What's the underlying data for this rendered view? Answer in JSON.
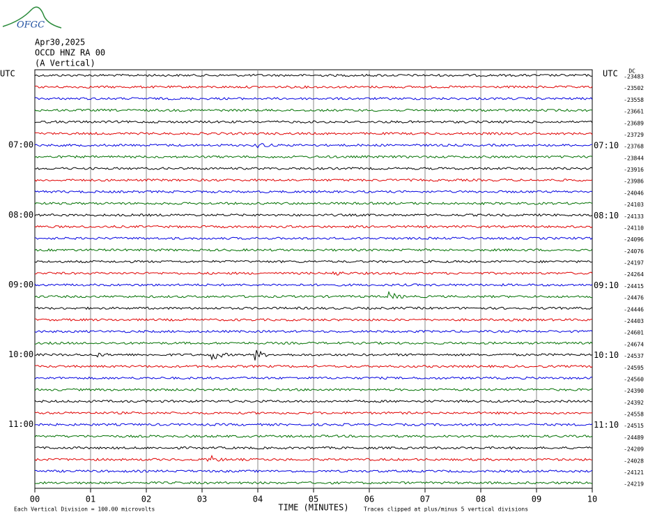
{
  "logo": "OFGC",
  "header": {
    "date": "Apr30,2025",
    "station": "OCCD HNZ RA 00",
    "component": "(A Vertical)"
  },
  "left_axis": {
    "title": "UTC",
    "hour_labels": [
      "07:00",
      "08:00",
      "09:00",
      "10:00",
      "11:00"
    ]
  },
  "right_axis": {
    "title": "UTC",
    "dc_title": "DC",
    "hour_labels": [
      "07:10",
      "08:10",
      "09:10",
      "10:10",
      "11:10"
    ],
    "dc_offsets": [
      "-23483",
      "-23502",
      "-23558",
      "-23661",
      "-23689",
      "-23729",
      "-23768",
      "-23844",
      "-23916",
      "-23986",
      "-24046",
      "-24103",
      "-24133",
      "-24110",
      "-24096",
      "-24076",
      "-24197",
      "-24264",
      "-24415",
      "-24476",
      "-24446",
      "-24403",
      "-24601",
      "-24674",
      "-24537",
      "-24595",
      "-24560",
      "-24390",
      "-24392",
      "-24558",
      "-24515",
      "-24489",
      "-24209",
      "-24028",
      "-24121",
      "-24219"
    ]
  },
  "x_axis": {
    "title": "TIME (MINUTES)",
    "ticks": [
      "00",
      "01",
      "02",
      "03",
      "04",
      "05",
      "06",
      "07",
      "08",
      "09",
      "10"
    ]
  },
  "footer": {
    "scale_note": "Each Vertical Division =  100.00 microvolts",
    "clip_note": "Traces clipped at plus/minus 5 vertical divisions"
  },
  "trace_colors": [
    "#000000",
    "#e00000",
    "#0000e0",
    "#007000"
  ]
}
